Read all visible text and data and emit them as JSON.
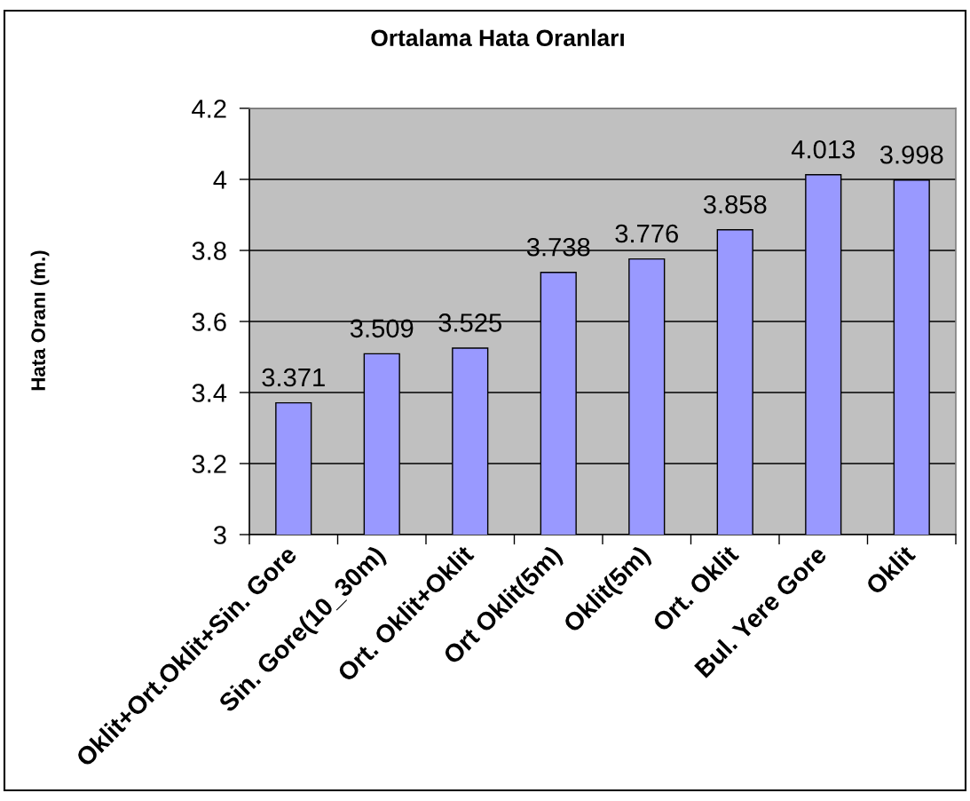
{
  "chart_data": {
    "type": "bar",
    "title": "Ortalama Hata Oranları",
    "ylabel": "Hata Oranı (m.)",
    "categories": [
      "Oklit+Ort.Oklit+Sin. Gore",
      "Sin. Gore(10_30m)",
      "Ort. Oklit+Oklit",
      "Ort Oklit(5m)",
      "Oklit(5m)",
      "Ort. Oklit",
      "Bul. Yere Gore",
      "Oklit"
    ],
    "values": [
      3.371,
      3.509,
      3.525,
      3.738,
      3.776,
      3.858,
      4.013,
      3.998
    ],
    "color": "#9999ff",
    "ylim": [
      3,
      4.2
    ],
    "yticks": [
      3,
      3.2,
      3.4,
      3.6,
      3.8,
      4,
      4.2
    ],
    "grid": "y",
    "data_labels": true
  }
}
